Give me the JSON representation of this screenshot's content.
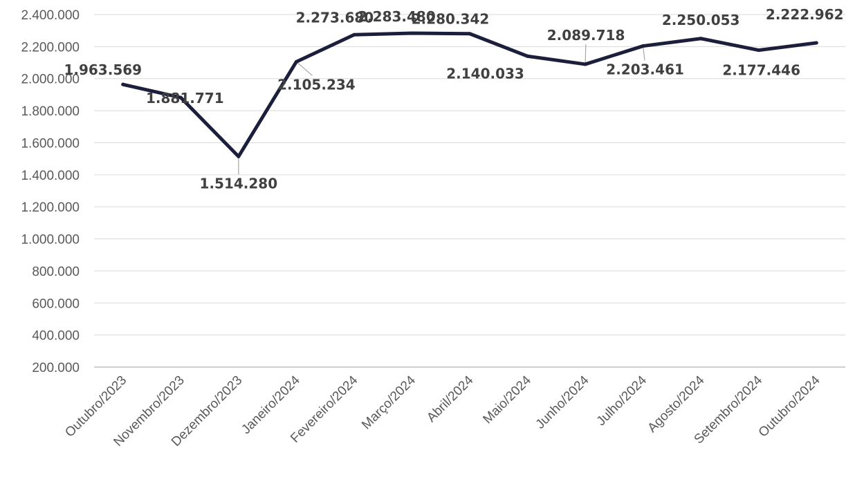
{
  "chart_data": {
    "type": "line",
    "title": "",
    "xlabel": "",
    "ylabel": "",
    "categories": [
      "Outubro/2023",
      "Novembro/2023",
      "Dezembro/2023",
      "Janeiro/2024",
      "Fevereiro/2024",
      "Março/2024",
      "Abril/2024",
      "Maio/2024",
      "Junho/2024",
      "Julho/2024",
      "Agosto/2024",
      "Setembro/2024",
      "Outubro/2024"
    ],
    "series": [
      {
        "values": [
          1963569,
          1881771,
          1514280,
          2105234,
          2273680,
          2283480,
          2280342,
          2140033,
          2089718,
          2203461,
          2250053,
          2177446,
          2222962
        ],
        "value_labels": [
          "1.963.569",
          "1.881.771",
          "1.514.280",
          "2.105.234",
          "2.273.680",
          "2.283.480",
          "2.280.342",
          "2.140.033",
          "2.089.718",
          "2.203.461",
          "2.250.053",
          "2.177.446",
          "2.222.962"
        ],
        "color": "#1c1f3b"
      }
    ],
    "ylim": [
      200000,
      2400000
    ],
    "yticks": [
      200000,
      400000,
      600000,
      800000,
      1000000,
      1200000,
      1400000,
      1600000,
      1800000,
      2000000,
      2200000,
      2400000
    ],
    "ytick_labels": [
      "200.000",
      "400.000",
      "600.000",
      "800.000",
      "1.000.000",
      "1.200.000",
      "1.400.000",
      "1.600.000",
      "1.800.000",
      "2.000.000",
      "2.200.000",
      "2.400.000"
    ],
    "grid": true,
    "legend": "none",
    "colors": {
      "line": "#1c1f3b",
      "grid": "#d9d9d9",
      "tick_text": "#595959",
      "label_text": "#404040"
    }
  }
}
